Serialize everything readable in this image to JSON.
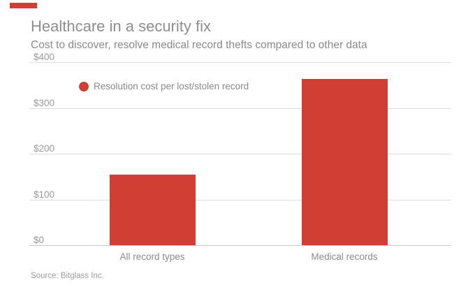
{
  "accent": {
    "color": "#d13e33"
  },
  "chart_data": {
    "type": "bar",
    "title": "Healthcare in a security fix",
    "subtitle": "Cost to discover, resolve medical record thefts compared to other data",
    "legend": {
      "label": "Resolution cost per lost/stolen record",
      "marker_color": "#d13e33",
      "position": "top-left-inside"
    },
    "categories": [
      "All record types",
      "Medical records"
    ],
    "values": [
      154,
      363
    ],
    "bar_color": "#d13e33",
    "xlabel": "",
    "ylabel": "",
    "ylim": [
      0,
      400
    ],
    "y_tick_labels": [
      "$400",
      "$300",
      "$200",
      "$100",
      "$0"
    ],
    "grid": true,
    "source": "Source: Bitglass Inc."
  }
}
